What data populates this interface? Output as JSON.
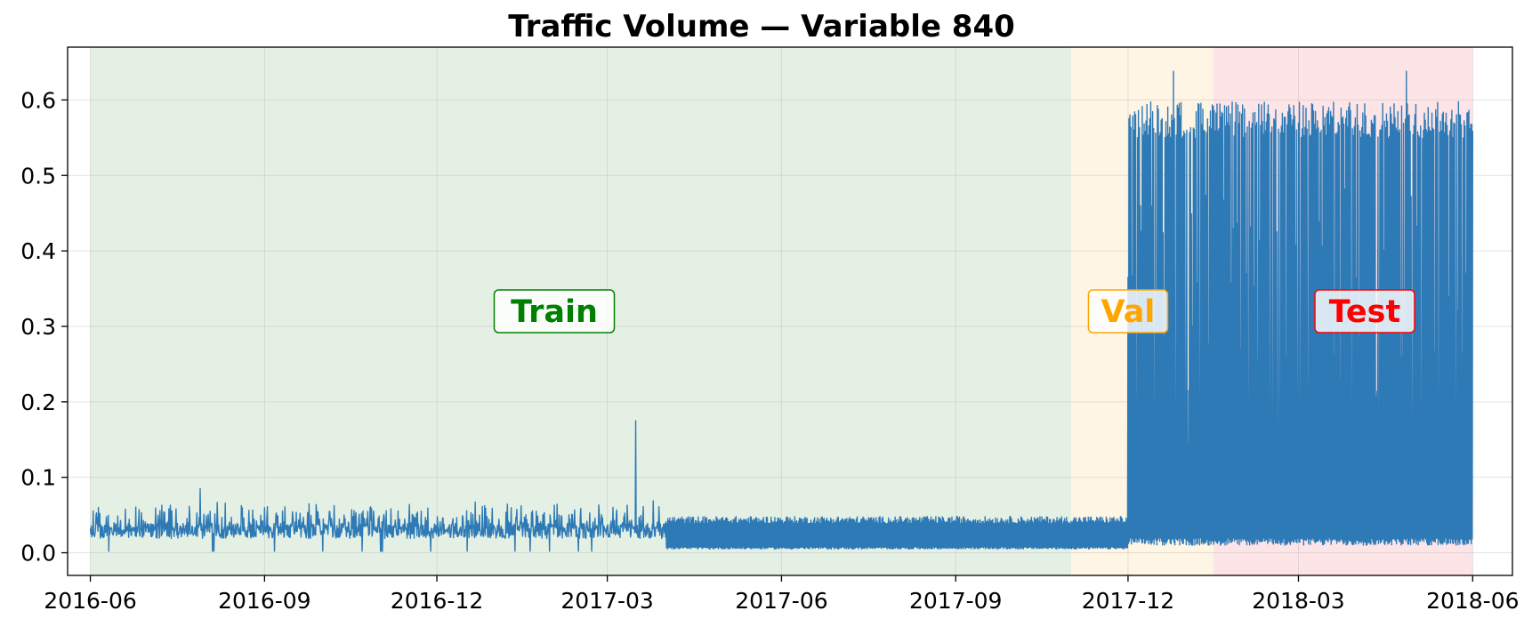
{
  "chart_data": {
    "type": "line",
    "title": "Traffic Volume — Variable 840",
    "xlabel": "",
    "ylabel": "",
    "x_range": [
      "2016-05-20",
      "2018-06-22"
    ],
    "ylim": [
      -0.03,
      0.67
    ],
    "grid": true,
    "x_ticks": [
      "2016-06",
      "2016-09",
      "2016-12",
      "2017-03",
      "2017-06",
      "2017-09",
      "2017-12",
      "2018-03",
      "2018-06"
    ],
    "y_ticks": [
      "0.0",
      "0.1",
      "0.2",
      "0.3",
      "0.4",
      "0.5",
      "0.6"
    ],
    "line_color": "#2e7ab6",
    "series_data_range": [
      "2016-06-01",
      "2018-06-01"
    ],
    "regions": [
      {
        "label": "Train",
        "start": "2016-06-01",
        "end": "2017-11-01",
        "fill": "#e5f0e4",
        "text_color": "#008000",
        "label_date": "2017-02-01",
        "label_y": 0.32
      },
      {
        "label": "Val",
        "start": "2017-11-01",
        "end": "2018-01-15",
        "fill": "#fef5e4",
        "text_color": "#ffa500",
        "label_date": "2017-12-01",
        "label_y": 0.32
      },
      {
        "label": "Test",
        "start": "2018-01-15",
        "end": "2018-06-01",
        "fill": "#fde4e6",
        "text_color": "#ff0000",
        "label_date": "2018-04-05",
        "label_y": 0.32
      }
    ],
    "phases": [
      {
        "start": "2016-06-01",
        "end": "2017-04-01",
        "baseline": 0.025,
        "peak": 0.055,
        "description": "low band"
      },
      {
        "start": "2017-04-01",
        "end": "2017-12-01",
        "baseline": 0.005,
        "peak": 0.048,
        "description": "low oscillation"
      },
      {
        "start": "2017-12-01",
        "end": "2018-06-01",
        "baseline": 0.01,
        "peak": 0.61,
        "description": "high oscillation"
      }
    ],
    "notable_points": [
      {
        "x": "2016-07-29",
        "y": 0.085
      },
      {
        "x": "2017-03-16",
        "y": 0.175
      },
      {
        "x": "2017-12-25",
        "y": 0.638
      },
      {
        "x": "2018-04-27",
        "y": 0.638
      }
    ]
  }
}
